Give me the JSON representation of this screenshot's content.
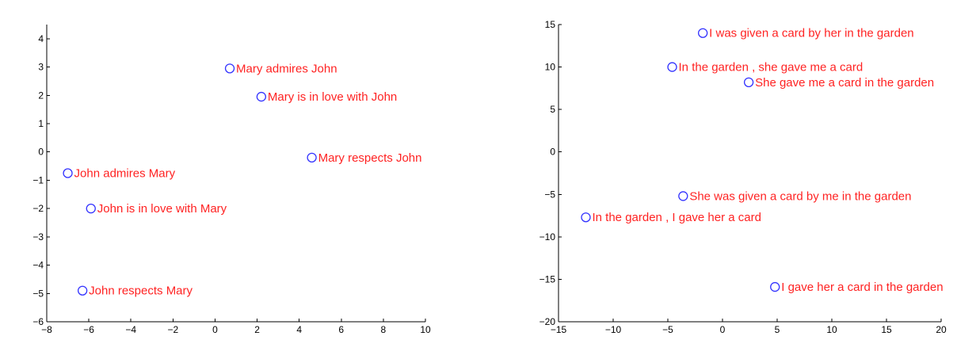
{
  "chart_data": [
    {
      "type": "scatter",
      "title": "",
      "xlabel": "",
      "ylabel": "",
      "xlim": [
        -8,
        10
      ],
      "ylim": [
        -6,
        4.5
      ],
      "xticks": [
        -8,
        -6,
        -4,
        -2,
        0,
        2,
        4,
        6,
        8,
        10
      ],
      "yticks": [
        -6,
        -5,
        -4,
        -3,
        -2,
        -1,
        0,
        1,
        2,
        3,
        4
      ],
      "grid": false,
      "marker_color": "#3333ff",
      "label_color": "#ff2222",
      "points": [
        {
          "x": 0.7,
          "y": 2.95,
          "label": "Mary admires John"
        },
        {
          "x": 2.2,
          "y": 1.95,
          "label": "Mary is in love with John"
        },
        {
          "x": 4.6,
          "y": -0.2,
          "label": "Mary respects John"
        },
        {
          "x": -7.0,
          "y": -0.75,
          "label": "John admires Mary"
        },
        {
          "x": -5.9,
          "y": -2.0,
          "label": "John is in love with Mary"
        },
        {
          "x": -6.3,
          "y": -4.9,
          "label": "John respects Mary"
        }
      ]
    },
    {
      "type": "scatter",
      "title": "",
      "xlabel": "",
      "ylabel": "",
      "xlim": [
        -15,
        20
      ],
      "ylim": [
        -20,
        15
      ],
      "xticks": [
        -15,
        -10,
        -5,
        0,
        5,
        10,
        15,
        20
      ],
      "yticks": [
        -20,
        -15,
        -10,
        -5,
        0,
        5,
        10,
        15
      ],
      "grid": false,
      "marker_color": "#3333ff",
      "label_color": "#ff2222",
      "points": [
        {
          "x": -1.8,
          "y": 14.0,
          "label": "I was given a card by her in the garden"
        },
        {
          "x": -4.6,
          "y": 10.0,
          "label": "In the garden , she gave me a card"
        },
        {
          "x": 2.4,
          "y": 8.2,
          "label": "She gave me a card in the garden"
        },
        {
          "x": -3.6,
          "y": -5.2,
          "label": "She was given a card by me in the garden"
        },
        {
          "x": -12.5,
          "y": -7.7,
          "label": "In the garden , I gave her a card"
        },
        {
          "x": 4.8,
          "y": -15.9,
          "label": "I gave her a card in the garden"
        }
      ]
    }
  ]
}
